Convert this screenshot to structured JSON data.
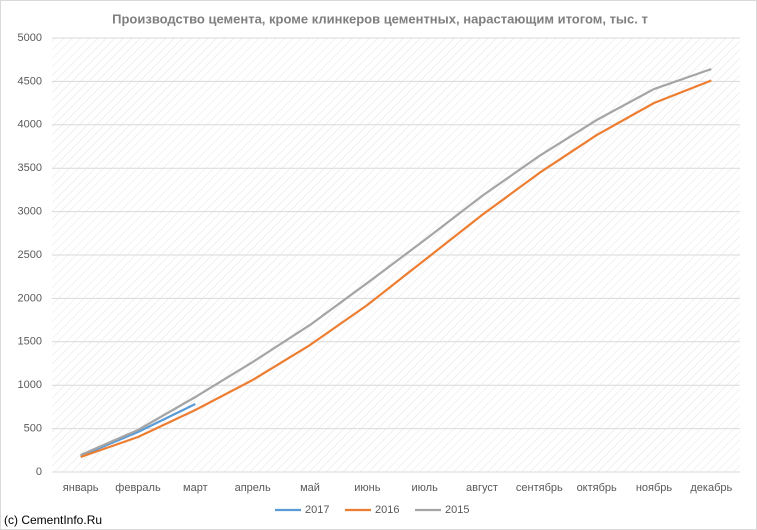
{
  "chart_data": {
    "type": "line",
    "title": "Производство цемента, кроме клинкеров цементных, нарастающим итогом, тыс. т",
    "categories": [
      "январь",
      "февраль",
      "март",
      "апрель",
      "май",
      "июнь",
      "июль",
      "август",
      "сентябрь",
      "октябрь",
      "ноябрь",
      "декабрь"
    ],
    "series": [
      {
        "name": "2017",
        "color": "#5b9bd5",
        "values": [
          184,
          461,
          783,
          null,
          null,
          null,
          null,
          null,
          null,
          null,
          null,
          null
        ]
      },
      {
        "name": "2016",
        "color": "#ed7d31",
        "values": [
          173,
          403,
          714,
          1060,
          1463,
          1924,
          2442,
          2961,
          3445,
          3882,
          4251,
          4510
        ]
      },
      {
        "name": "2015",
        "color": "#a5a5a5",
        "values": [
          196,
          484,
          864,
          1267,
          1694,
          2178,
          2673,
          3180,
          3641,
          4055,
          4412,
          4643
        ]
      }
    ],
    "ylim": [
      0,
      5000
    ],
    "yticks": [
      0,
      500,
      1000,
      1500,
      2000,
      2500,
      3000,
      3500,
      4000,
      4500,
      5000
    ],
    "grid": true,
    "legend": "bottom",
    "annotation": "(c) CementInfo.Ru"
  }
}
